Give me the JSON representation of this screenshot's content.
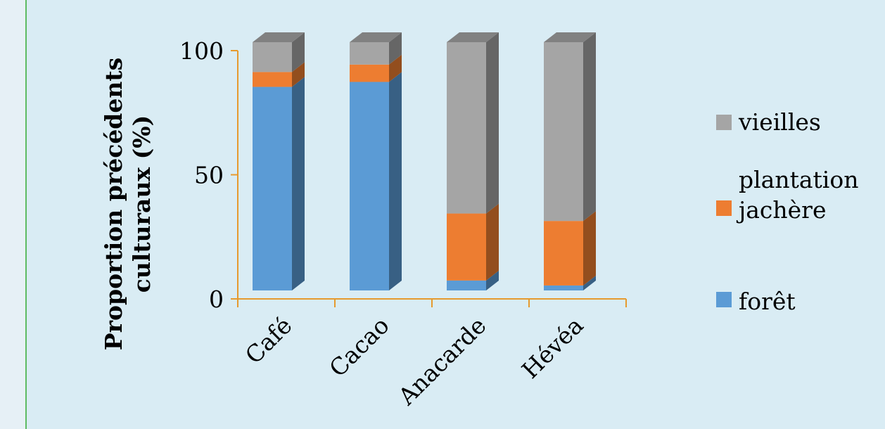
{
  "chart_data": {
    "type": "bar",
    "stacked": true,
    "three_d": true,
    "categories": [
      "Café",
      "Cacao",
      "Anacarde",
      "Hévéa"
    ],
    "series": [
      {
        "name": "forêt",
        "color": "#5b9bd5",
        "values": [
          82,
          84,
          4,
          2
        ]
      },
      {
        "name": "jachère",
        "color": "#ed7d31",
        "values": [
          6,
          7,
          27,
          26
        ]
      },
      {
        "name": "vieilles plantations",
        "color": "#a5a5a5",
        "values": [
          12,
          9,
          69,
          72
        ]
      }
    ],
    "legend_order": [
      "vieilles plantations",
      "jachère",
      "forêt"
    ],
    "ylabel_lines": [
      "Proportion précédents",
      "culturaux (%)"
    ],
    "yticks": [
      0,
      50,
      100
    ],
    "ylim": [
      0,
      100
    ],
    "legend_position": "right",
    "axis_color": "#e69a2e"
  },
  "legend": {
    "vieilles_line1": "vieilles",
    "vieilles_line2": "plantation",
    "jachere": "jachère",
    "foret": "forêt"
  }
}
